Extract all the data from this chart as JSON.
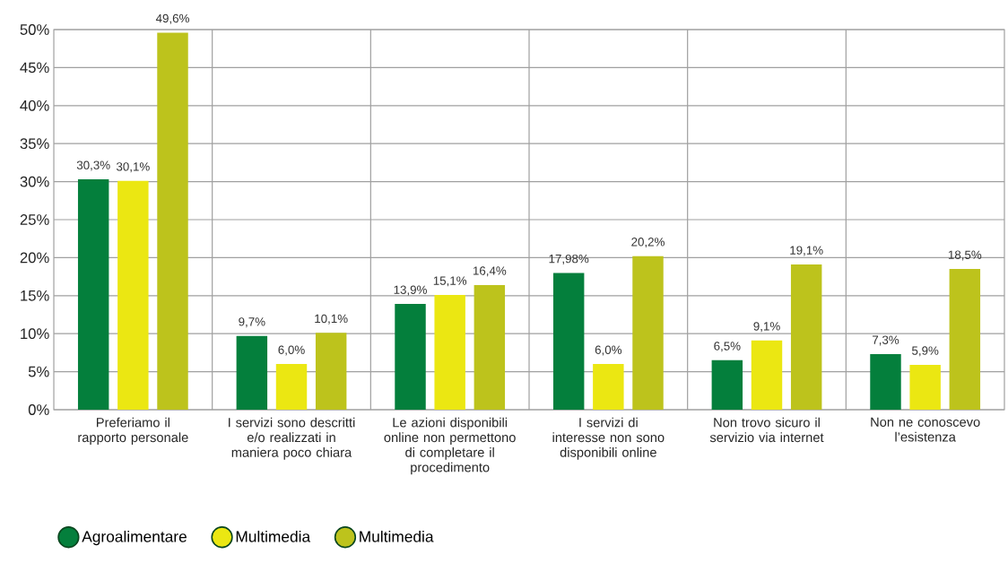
{
  "chart_data": {
    "type": "bar",
    "categories": [
      "Preferiamo il rapporto personale",
      "I servizi sono descritti e/o realizzati in maniera poco chiara",
      "Le azioni disponibili online non permettono di completare il procedimento",
      "I servizi di interesse non sono disponibili online",
      "Non trovo sicuro il servizio via internet",
      "Non ne conoscevo l’esistenza"
    ],
    "series": [
      {
        "name": "Agroalimentare",
        "color": "#047f3c",
        "values": [
          30.3,
          9.7,
          13.9,
          17.98,
          6.5,
          7.3
        ],
        "value_labels": [
          "30,3%",
          "9,7%",
          "13,9%",
          "17,98%",
          "6,5%",
          "7,3%"
        ]
      },
      {
        "name": "Multimedia",
        "color": "#ebe712",
        "values": [
          30.1,
          6.0,
          15.1,
          6.0,
          9.1,
          5.9
        ],
        "value_labels": [
          "30,1%",
          "6,0%",
          "15,1%",
          "6,0%",
          "9,1%",
          "5,9%"
        ]
      },
      {
        "name": "Multimedia",
        "color": "#bdc31c",
        "values": [
          49.6,
          10.1,
          16.4,
          20.2,
          19.1,
          18.5
        ],
        "value_labels": [
          "49,6%",
          "10,1%",
          "16,4%",
          "20,2%",
          "19,1%",
          "18,5%"
        ]
      }
    ],
    "ylim": [
      0,
      50
    ],
    "yticks": [
      {
        "value": 0,
        "label": "0%"
      },
      {
        "value": 5,
        "label": "5%"
      },
      {
        "value": 10,
        "label": "10%"
      },
      {
        "value": 15,
        "label": "15%"
      },
      {
        "value": 20,
        "label": "20%"
      },
      {
        "value": 25,
        "label": "25%"
      },
      {
        "value": 30,
        "label": "30%"
      },
      {
        "value": 35,
        "label": "35%"
      },
      {
        "value": 40,
        "label": "40%"
      },
      {
        "value": 45,
        "label": "45%"
      },
      {
        "value": 50,
        "label": "50%"
      }
    ],
    "grid": true,
    "legend": "bottom left"
  }
}
